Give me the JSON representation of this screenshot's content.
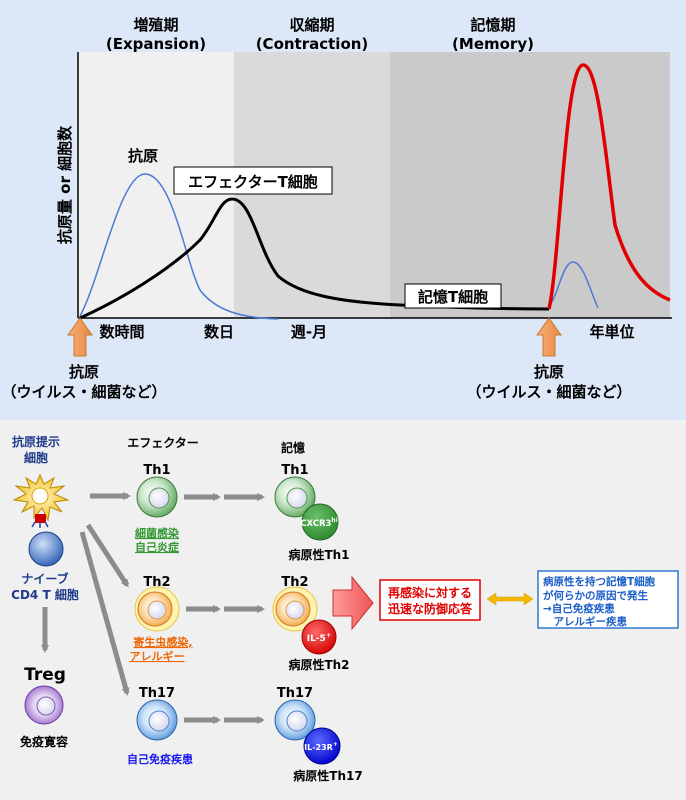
{
  "top": {
    "phases": [
      {
        "name": "増殖期",
        "en": "(Expansion)"
      },
      {
        "name": "収縮期",
        "en": "(Contraction)"
      },
      {
        "name": "記憶期",
        "en": "(Memory)"
      }
    ],
    "ylabel": "抗原量 or 細胞数",
    "curve_labels": {
      "antigen": "抗原",
      "effector": "エフェクターT細胞",
      "memory": "記憶T細胞"
    },
    "time_labels": [
      "数時間",
      "数日",
      "週-月",
      "年単位"
    ],
    "stimulus": {
      "title": "抗原",
      "detail": "（ウイルス・細菌など）"
    },
    "colors": {
      "antigen": "#4a7bd6",
      "effector": "#000000",
      "recall": "#e00000",
      "panel_bg": "#dce8f7"
    }
  },
  "bottom": {
    "apc_label": [
      "抗原提示",
      "細胞"
    ],
    "header_effector": "エフェクター",
    "header_memory": "記憶",
    "naive_label": [
      "ナイーブ",
      "CD4 T 細胞"
    ],
    "treg": {
      "label": "Treg",
      "role": "免疫寛容"
    },
    "lineages": [
      {
        "name": "Th1",
        "disease": [
          "細菌感染",
          "自己炎症"
        ],
        "marker": "CXCR3",
        "marker_sup": "hi",
        "pathogenic": "病原性Th1",
        "color": "#339933"
      },
      {
        "name": "Th2",
        "disease": [
          "寄生虫感染,",
          "アレルギー"
        ],
        "marker": "IL-5",
        "marker_sup": "+",
        "pathogenic": "病原性Th2",
        "color": "#ee6600"
      },
      {
        "name": "Th17",
        "disease": [
          "自己免疫疾患"
        ],
        "marker": "IL-23R",
        "marker_sup": "+",
        "pathogenic": "病原性Th17",
        "color": "#1a1aee"
      }
    ],
    "reinfection": [
      "再感染に対する",
      "迅速な防御応答"
    ],
    "pathogenic_box": [
      "病原性を持つ記憶T細胞",
      "が何らかの原因で発生",
      "→自己免疫疾患",
      "　アレルギー疾患"
    ]
  }
}
